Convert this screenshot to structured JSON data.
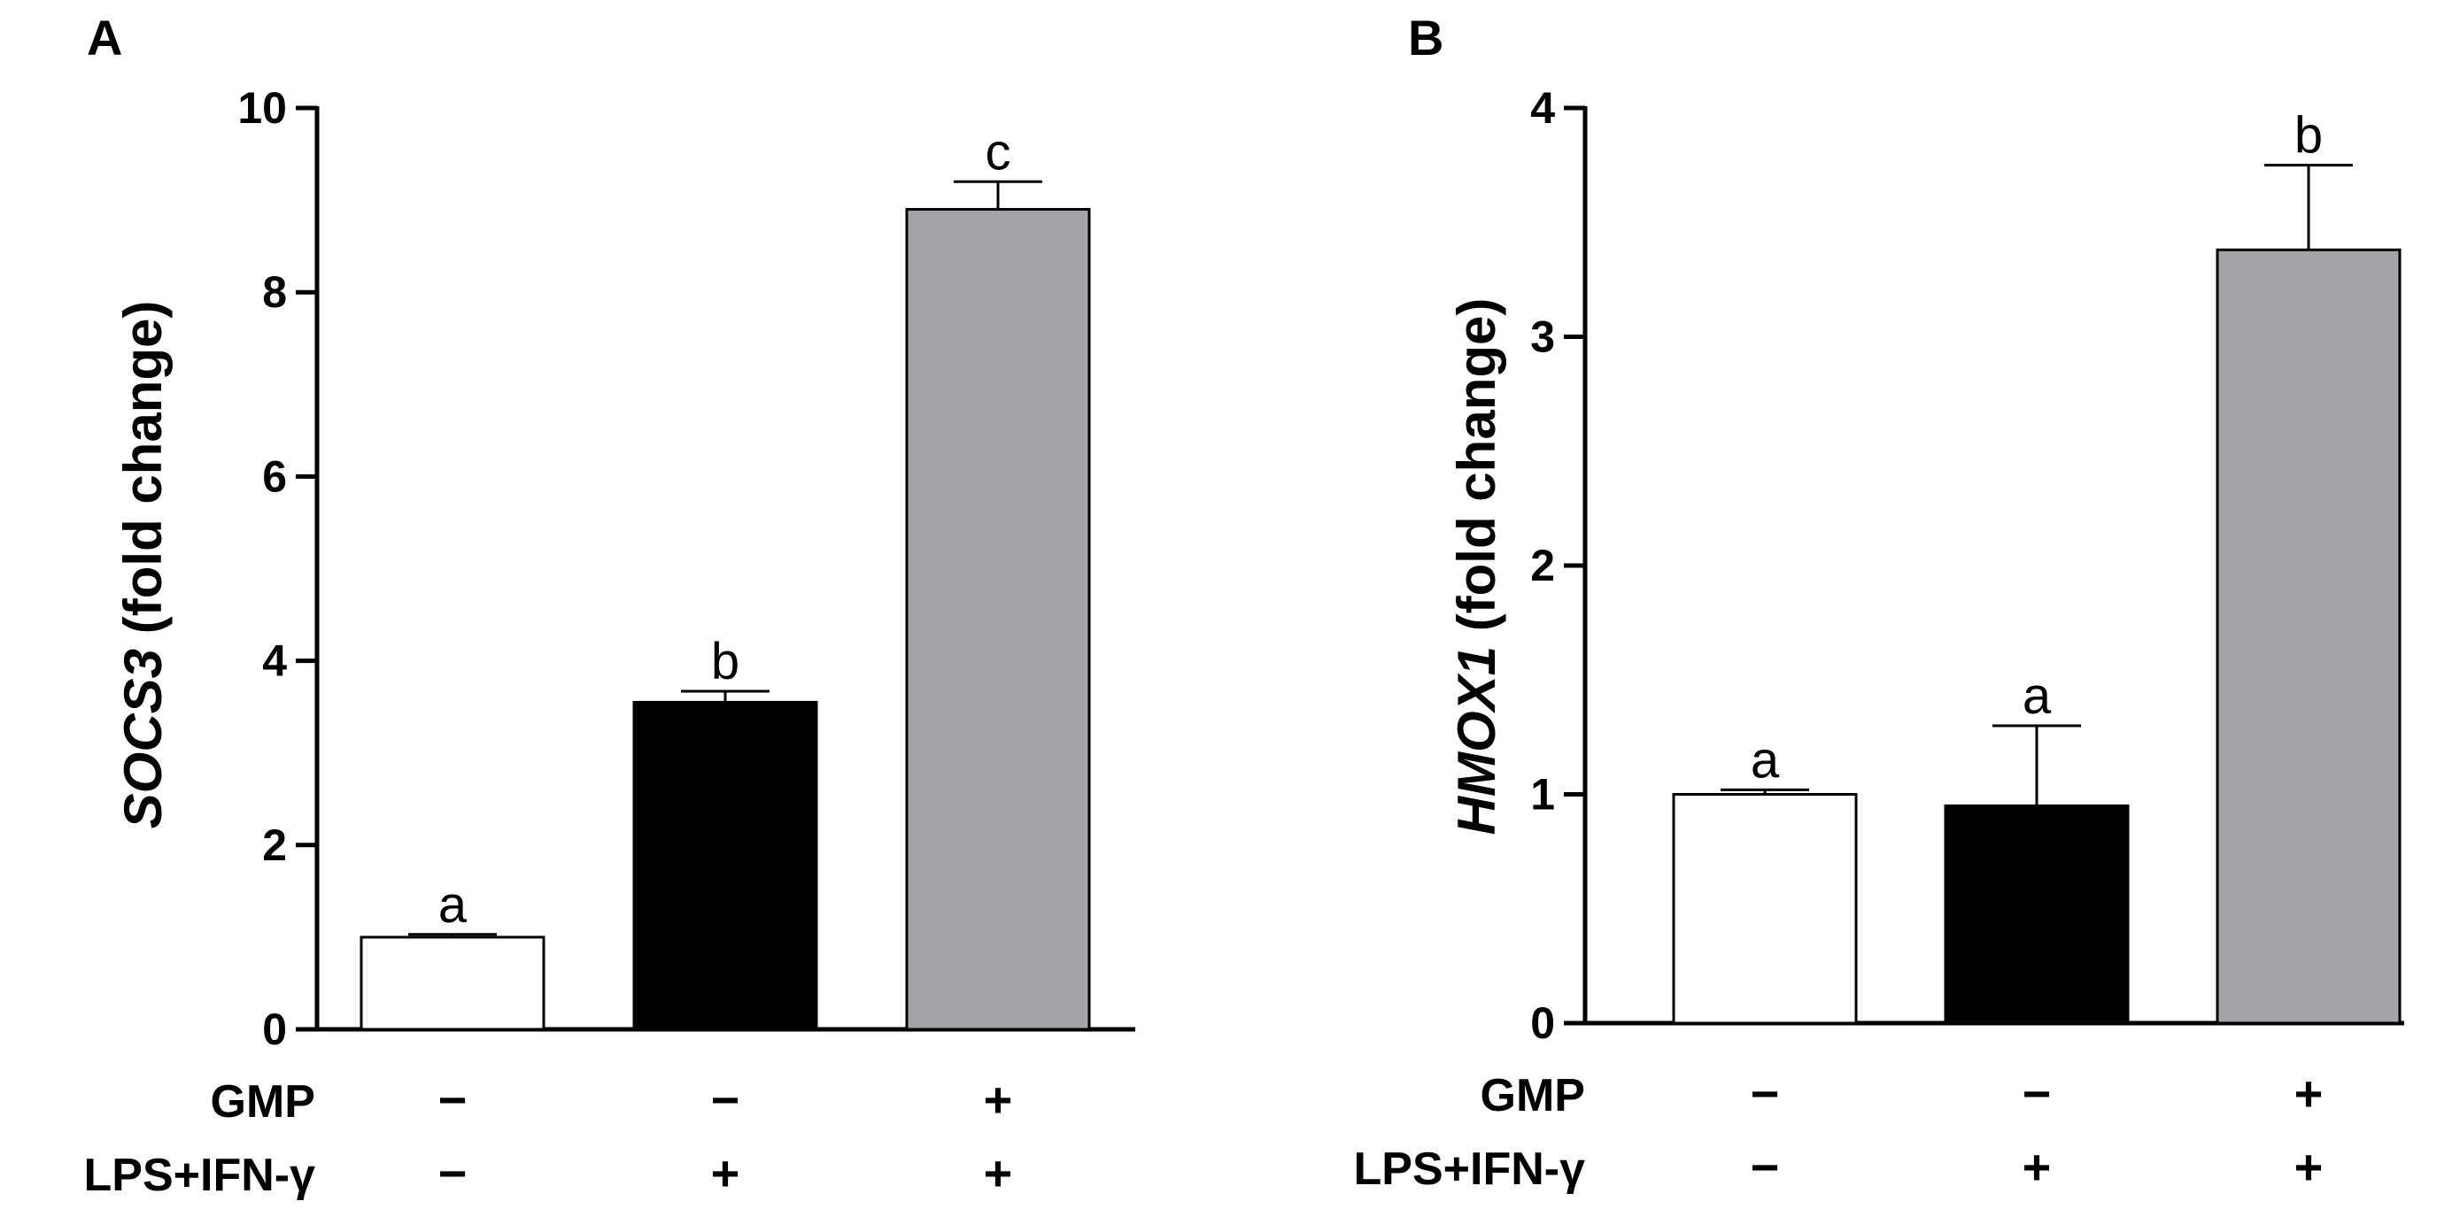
{
  "chart_data": [
    {
      "panel": "A",
      "type": "bar",
      "ylabel_gene": "SOCS3",
      "ylabel_suffix": " (fold change)",
      "ylim": [
        0,
        10
      ],
      "yticks": [
        "0",
        "2",
        "4",
        "6",
        "8",
        "10"
      ],
      "categories": [
        "−/−",
        "−/+",
        "+/+"
      ],
      "values": [
        1.0,
        3.55,
        8.9
      ],
      "errors": [
        0.03,
        0.12,
        0.3
      ],
      "letters": [
        "a",
        "b",
        "c"
      ],
      "colors": [
        "#ffffff",
        "#000000",
        "#a4a3a8"
      ]
    },
    {
      "panel": "B",
      "type": "bar",
      "ylabel_gene": "HMOX1",
      "ylabel_suffix": " (fold change)",
      "ylim": [
        0,
        4
      ],
      "yticks": [
        "0",
        "1",
        "2",
        "3",
        "4"
      ],
      "categories": [
        "−/−",
        "−/+",
        "+/+"
      ],
      "values": [
        1.0,
        0.95,
        3.38
      ],
      "errors": [
        0.02,
        0.35,
        0.37
      ],
      "letters": [
        "a",
        "a",
        "b"
      ],
      "colors": [
        "#ffffff",
        "#000000",
        "#a4a3a8"
      ]
    }
  ],
  "treatments": {
    "gmp_label": "GMP",
    "lps_label": "LPS+IFN-γ",
    "gmp": [
      "−",
      "−",
      "+"
    ],
    "lps": [
      "−",
      "+",
      "+"
    ]
  }
}
